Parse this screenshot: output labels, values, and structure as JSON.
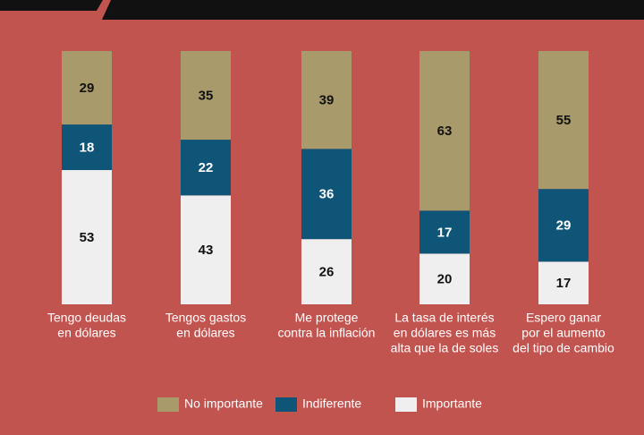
{
  "chart_data": {
    "type": "stacked_bar",
    "categories": [
      [
        "Tengo deudas",
        "en dólares"
      ],
      [
        "Tengos gastos",
        "en dólares"
      ],
      [
        "Me protege",
        "contra la inflación"
      ],
      [
        "La tasa de interés",
        "en dólares es más",
        "alta que la de soles"
      ],
      [
        "Espero ganar",
        "por el aumento",
        "del tipo de cambio"
      ]
    ],
    "series": [
      {
        "name": "No importante",
        "color": "#a99a6c",
        "values": [
          29,
          35,
          39,
          63,
          55
        ]
      },
      {
        "name": "Indiferente",
        "color": "#0f5577",
        "values": [
          18,
          22,
          36,
          17,
          29
        ]
      },
      {
        "name": "Importante",
        "color": "#efefef",
        "values": [
          53,
          43,
          26,
          20,
          17
        ]
      }
    ]
  }
}
